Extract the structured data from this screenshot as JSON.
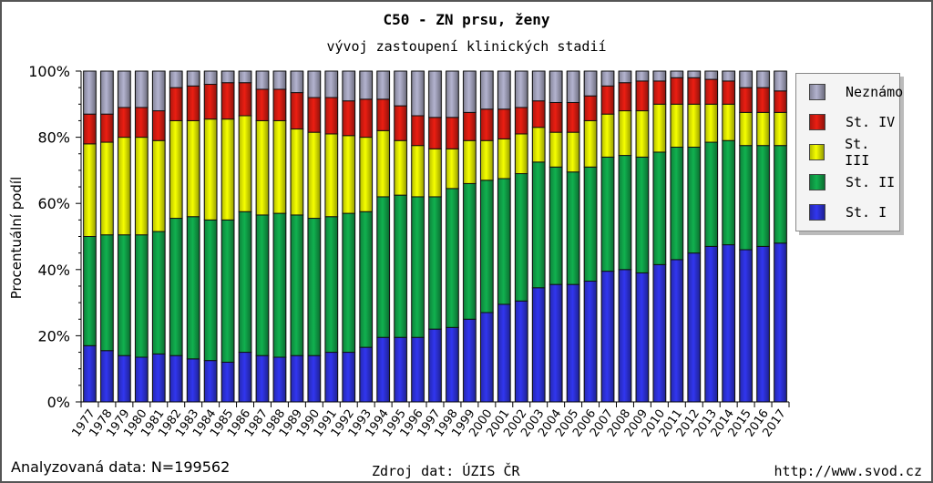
{
  "chart_data": {
    "type": "bar",
    "stacked": true,
    "title": "C50 - ZN prsu, ženy",
    "subtitle": "vývoj zastoupení klinických stadií",
    "xlabel": "",
    "ylabel": "Procentuální podíl",
    "ylim": [
      0,
      100
    ],
    "yticks": [
      "0%",
      "20%",
      "40%",
      "60%",
      "80%",
      "100%"
    ],
    "ytick_values": [
      0,
      20,
      40,
      60,
      80,
      100
    ],
    "legend_position": "right",
    "categories": [
      "1977",
      "1978",
      "1979",
      "1980",
      "1981",
      "1982",
      "1983",
      "1984",
      "1985",
      "1986",
      "1987",
      "1988",
      "1989",
      "1990",
      "1991",
      "1992",
      "1993",
      "1994",
      "1995",
      "1996",
      "1997",
      "1998",
      "1999",
      "2000",
      "2001",
      "2002",
      "2003",
      "2004",
      "2005",
      "2006",
      "2007",
      "2008",
      "2009",
      "2010",
      "2011",
      "2012",
      "2013",
      "2014",
      "2015",
      "2016",
      "2017"
    ],
    "series": [
      {
        "name": "St. I",
        "color": "#2b2fd0",
        "values": [
          17,
          15.5,
          14,
          13.5,
          14.5,
          14,
          13,
          12.5,
          12,
          15,
          14,
          13.5,
          14,
          14,
          15,
          15,
          16.5,
          19.5,
          19.5,
          19.5,
          22,
          22.5,
          25,
          27,
          29.5,
          30.5,
          34.5,
          35.5,
          35.5,
          36.5,
          39.5,
          40,
          39,
          41.5,
          43,
          45,
          47,
          47.5,
          46,
          47,
          48
        ]
      },
      {
        "name": "St. II",
        "color": "#0f9a45",
        "values": [
          33,
          35,
          36.5,
          37,
          37,
          41.5,
          43,
          42.5,
          43,
          42.5,
          42.5,
          43.5,
          42.5,
          41.5,
          41,
          42,
          41,
          42.5,
          43,
          42.5,
          40,
          42,
          41,
          40,
          38,
          38.5,
          38,
          35.5,
          34,
          34.5,
          34.5,
          34.5,
          35,
          34,
          34,
          32,
          31.5,
          31.5,
          31.5,
          30.5,
          29.5
        ]
      },
      {
        "name": "St. III",
        "color": "#d6e000",
        "values": [
          28,
          28,
          29.5,
          29.5,
          27.5,
          29.5,
          29,
          30.5,
          30.5,
          29,
          28.5,
          28,
          26,
          26,
          25,
          23.5,
          22.5,
          20,
          16.5,
          15.5,
          14.5,
          12,
          13,
          12,
          12,
          12,
          10.5,
          10.5,
          12,
          14,
          13,
          13.5,
          14,
          14.5,
          13,
          13,
          11.5,
          11,
          10,
          10,
          10
        ]
      },
      {
        "name": "St. IV",
        "color": "#cc1a10",
        "values": [
          9,
          8.5,
          9,
          9,
          9,
          10,
          10.5,
          10.5,
          11,
          10,
          9.5,
          9.5,
          11,
          10.5,
          11,
          10.5,
          11.5,
          9.5,
          10.5,
          9,
          9.5,
          9.5,
          8.5,
          9.5,
          9,
          8,
          8,
          9,
          9,
          7.5,
          8.5,
          8.5,
          9,
          7,
          8,
          8,
          7.5,
          7,
          7.5,
          7.5,
          6.5
        ]
      },
      {
        "name": "Neznámo",
        "color": "#9c9cb4",
        "values": [
          13,
          13,
          11,
          11,
          12,
          5,
          4.5,
          4,
          3.5,
          3.5,
          5.5,
          5.5,
          6.5,
          8,
          8,
          9,
          8.5,
          8.5,
          10.5,
          13.5,
          14,
          14,
          12.5,
          11.5,
          11.5,
          11,
          9,
          9.5,
          9.5,
          7.5,
          4.5,
          3.5,
          3,
          3,
          2,
          2,
          2.5,
          3,
          5,
          5,
          6
        ]
      }
    ],
    "legend_order": [
      "Neznámo",
      "St. IV",
      "St. III",
      "St. II",
      "St. I"
    ]
  },
  "footer": {
    "analyzed": "Analyzovaná data: N=199562",
    "source": "Zdroj dat: ÚZIS ČR",
    "url": "http://www.svod.cz"
  }
}
